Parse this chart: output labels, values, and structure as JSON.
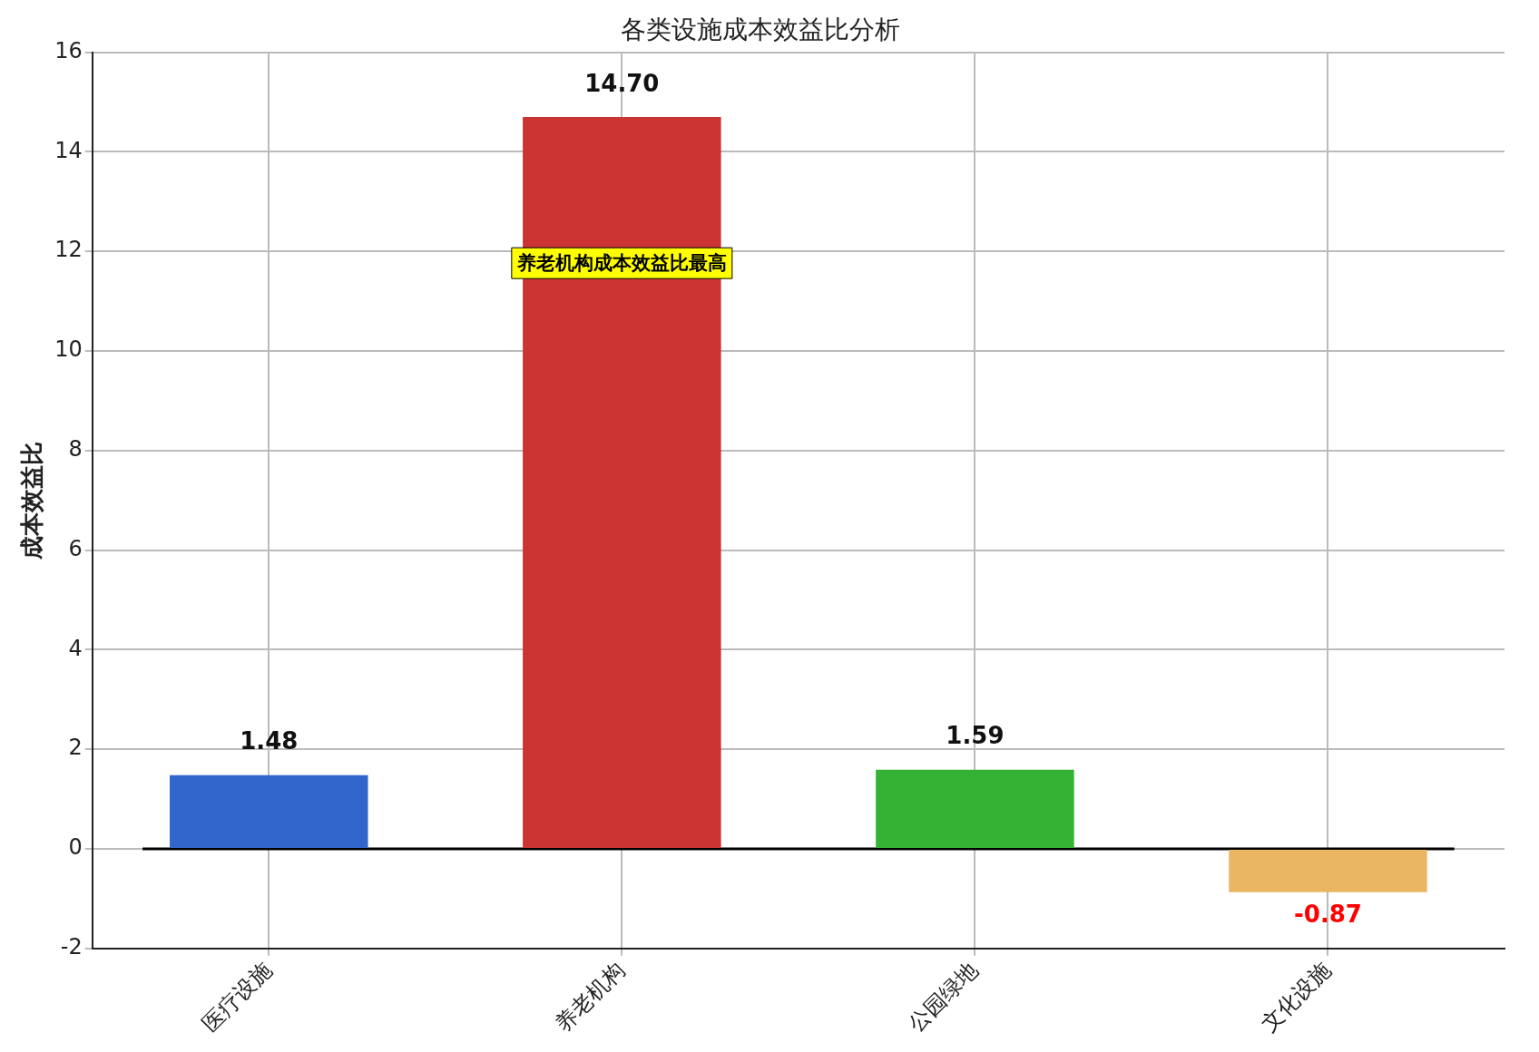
{
  "chart_data": {
    "type": "bar",
    "title": "各类设施成本效益比分析",
    "ylabel": "成本效益比",
    "categories": [
      "医疗设施",
      "养老机构",
      "公园绿地",
      "文化设施"
    ],
    "values": [
      1.48,
      14.7,
      1.59,
      -0.87
    ],
    "colors": [
      "#3366cc",
      "#cc3333",
      "#33b233",
      "#ebb663"
    ],
    "value_labels": [
      "1.48",
      "14.70",
      "1.59",
      "-0.87"
    ],
    "ylim": [
      -2,
      16
    ],
    "yticks": [
      -2,
      0,
      2,
      4,
      6,
      8,
      10,
      12,
      14,
      16
    ],
    "grid": true,
    "ref_lines": [
      {
        "axis": "y",
        "value": 0,
        "color": "#000000"
      }
    ],
    "annotations": [
      "养老机构成本效益比最高"
    ]
  }
}
